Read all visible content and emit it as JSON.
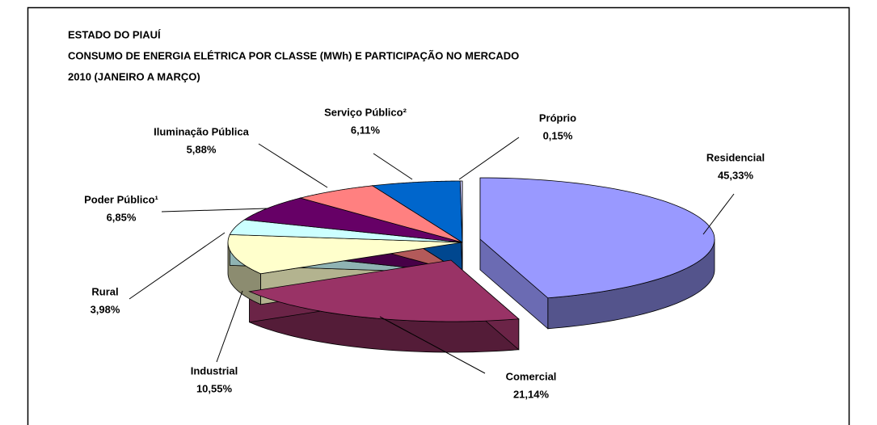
{
  "chart_data": {
    "type": "pie3d",
    "title": [
      "ESTADO DO PIAUÍ",
      "CONSUMO DE ENERGIA ELÉTRICA POR CLASSE (MWh) E PARTICIPAÇÃO NO MERCADO",
      "2010 (JANEIRO A MARÇO)"
    ],
    "categories": [
      "Residencial",
      "Comercial",
      "Industrial",
      "Rural",
      "Poder Público¹",
      "Iluminação Pública",
      "Serviço Público²",
      "Próprio"
    ],
    "values": [
      45.33,
      21.14,
      10.55,
      3.98,
      6.85,
      5.88,
      6.11,
      0.15
    ],
    "value_labels": [
      "45,33%",
      "21,14%",
      "10,55%",
      "3,98%",
      "6,85%",
      "5,88%",
      "6,11%",
      "0,15%"
    ],
    "colors": [
      "#9999ff",
      "#993366",
      "#ffffcc",
      "#ccffff",
      "#660066",
      "#ff8080",
      "#0066cc",
      "#ccccff"
    ]
  }
}
